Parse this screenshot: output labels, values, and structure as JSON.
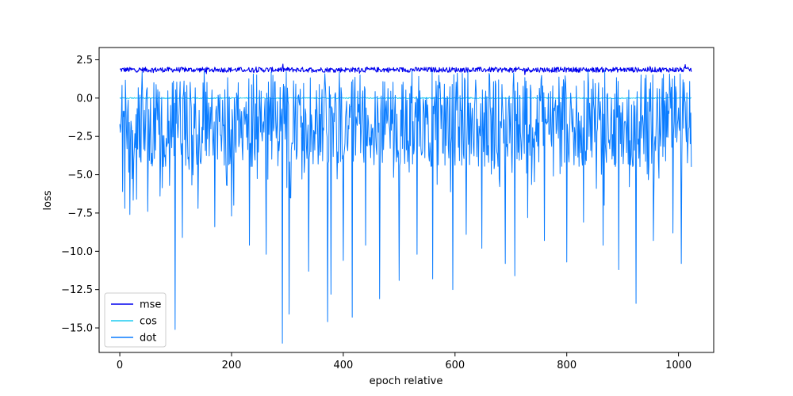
{
  "chart_data": {
    "type": "line",
    "title": "",
    "xlabel": "epoch relative",
    "ylabel": "loss",
    "xlim": [
      -37,
      1063
    ],
    "ylim": [
      -16.6,
      3.3
    ],
    "xticks": [
      0,
      200,
      400,
      600,
      800,
      1000
    ],
    "xtick_labels": [
      "0",
      "200",
      "400",
      "600",
      "800",
      "1000"
    ],
    "yticks": [
      2.5,
      0.0,
      -2.5,
      -5.0,
      -7.5,
      -10.0,
      -12.5,
      -15.0
    ],
    "ytick_labels": [
      "2.5",
      "0.0",
      "−2.5",
      "−5.0",
      "−7.5",
      "−10.0",
      "−12.5",
      "−15.0"
    ],
    "grid": false,
    "legend_position": "lower-left",
    "n_points": 1024,
    "series": [
      {
        "name": "mse",
        "color": "#0000ee",
        "typical_range": [
          1.6,
          2.2
        ],
        "mean": 1.85
      },
      {
        "name": "cos",
        "color": "#1ecbf0",
        "typical_range": [
          -0.1,
          0.1
        ],
        "mean": 0.0
      },
      {
        "name": "dot",
        "color": "#0a7cff",
        "typical_range": [
          -4.5,
          1.2
        ],
        "mean": -1.4,
        "spikes": [
          {
            "x": 5,
            "y": -6.1
          },
          {
            "x": 9,
            "y": -7.2
          },
          {
            "x": 18,
            "y": -7.6
          },
          {
            "x": 30,
            "y": -6.6
          },
          {
            "x": 50,
            "y": -7.4
          },
          {
            "x": 72,
            "y": -6.4
          },
          {
            "x": 99,
            "y": -15.1
          },
          {
            "x": 112,
            "y": -9.1
          },
          {
            "x": 140,
            "y": -7.2
          },
          {
            "x": 170,
            "y": -8.4
          },
          {
            "x": 200,
            "y": -7.7
          },
          {
            "x": 232,
            "y": -9.6
          },
          {
            "x": 262,
            "y": -10.2
          },
          {
            "x": 291,
            "y": -16.0
          },
          {
            "x": 303,
            "y": -14.1
          },
          {
            "x": 338,
            "y": -11.3
          },
          {
            "x": 372,
            "y": -14.6
          },
          {
            "x": 378,
            "y": -12.8
          },
          {
            "x": 400,
            "y": -10.6
          },
          {
            "x": 416,
            "y": -14.3
          },
          {
            "x": 440,
            "y": -9.6
          },
          {
            "x": 465,
            "y": -13.1
          },
          {
            "x": 500,
            "y": -11.9
          },
          {
            "x": 532,
            "y": -10.2
          },
          {
            "x": 560,
            "y": -11.8
          },
          {
            "x": 596,
            "y": -12.5
          },
          {
            "x": 620,
            "y": -8.9
          },
          {
            "x": 648,
            "y": -9.8
          },
          {
            "x": 690,
            "y": -10.8
          },
          {
            "x": 707,
            "y": -11.6
          },
          {
            "x": 730,
            "y": -7.8
          },
          {
            "x": 760,
            "y": -9.3
          },
          {
            "x": 800,
            "y": -10.7
          },
          {
            "x": 830,
            "y": -8.1
          },
          {
            "x": 865,
            "y": -9.6
          },
          {
            "x": 893,
            "y": -11.2
          },
          {
            "x": 924,
            "y": -13.4
          },
          {
            "x": 955,
            "y": -9.3
          },
          {
            "x": 990,
            "y": -8.8
          },
          {
            "x": 1005,
            "y": -10.8
          }
        ]
      }
    ]
  }
}
